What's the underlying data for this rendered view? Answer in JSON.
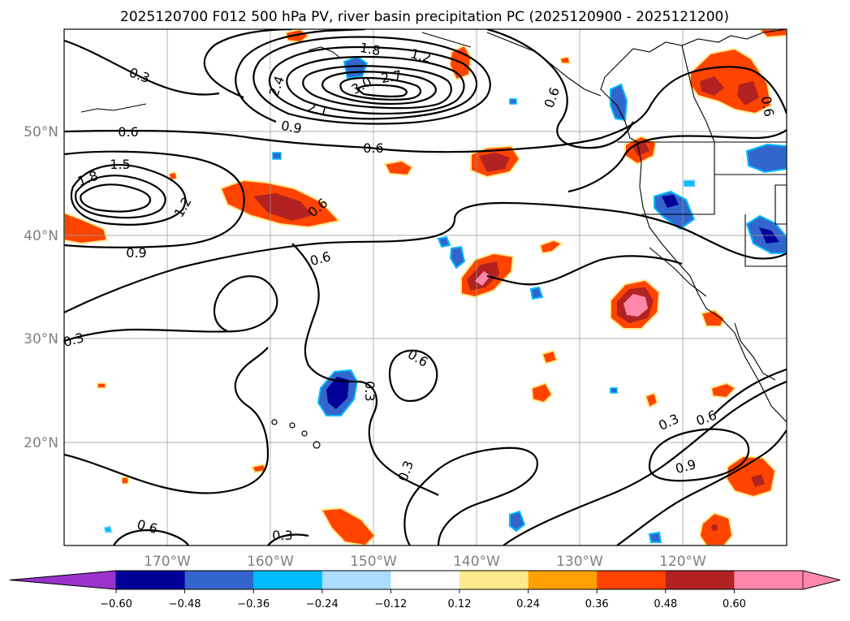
{
  "title": "2025120700 F012 500 hPa PV, river basin precipitation PC (2025120900 - 2025121200)",
  "lat_labels": [
    "50°N",
    "40°N",
    "30°N",
    "20°N"
  ],
  "lon_labels": [
    "170°W",
    "160°W",
    "150°W",
    "140°W",
    "130°W",
    "120°W"
  ],
  "contour_labels": [
    "0.3",
    "0.6",
    "1.5",
    "1.8",
    "1.2",
    "0.9",
    "0.6",
    "0.6",
    "2.1",
    "0.9",
    "0.6",
    "1.8",
    "1.2",
    "3.0",
    "2.7",
    "2.4",
    "0.6",
    "0.6",
    "0.3",
    "0.3",
    "0.6",
    "0.3",
    "0.3",
    "0.6",
    "0.9",
    "0.3",
    "0.6"
  ],
  "colorbar": {
    "ticks": [
      "−0.60",
      "−0.48",
      "−0.36",
      "−0.24",
      "−0.12",
      "0.12",
      "0.24",
      "0.36",
      "0.48",
      "0.60"
    ],
    "colors": [
      "#9933cc",
      "#000099",
      "#3366cc",
      "#00bbff",
      "#aaddff",
      "#ffffff",
      "#ffe98a",
      "#ffa000",
      "#ff4400",
      "#b22222",
      "#ff88aa",
      "#ff88aa"
    ]
  },
  "chart_data": {
    "type": "map",
    "title": "2025120700 F012 500 hPa PV, river basin precipitation PC (2025120900 - 2025121200)",
    "lon_range": [
      -180,
      -110
    ],
    "lat_range": [
      10,
      60
    ],
    "contour_field": "500 hPa PV",
    "contour_levels": [
      0.3,
      0.6,
      0.9,
      1.2,
      1.5,
      1.8,
      2.1,
      2.4,
      2.7,
      3.0
    ],
    "fill_field": "river basin precipitation PC",
    "fill_levels": [
      -0.6,
      -0.48,
      -0.36,
      -0.24,
      -0.12,
      0.12,
      0.24,
      0.36,
      0.48,
      0.6
    ]
  }
}
